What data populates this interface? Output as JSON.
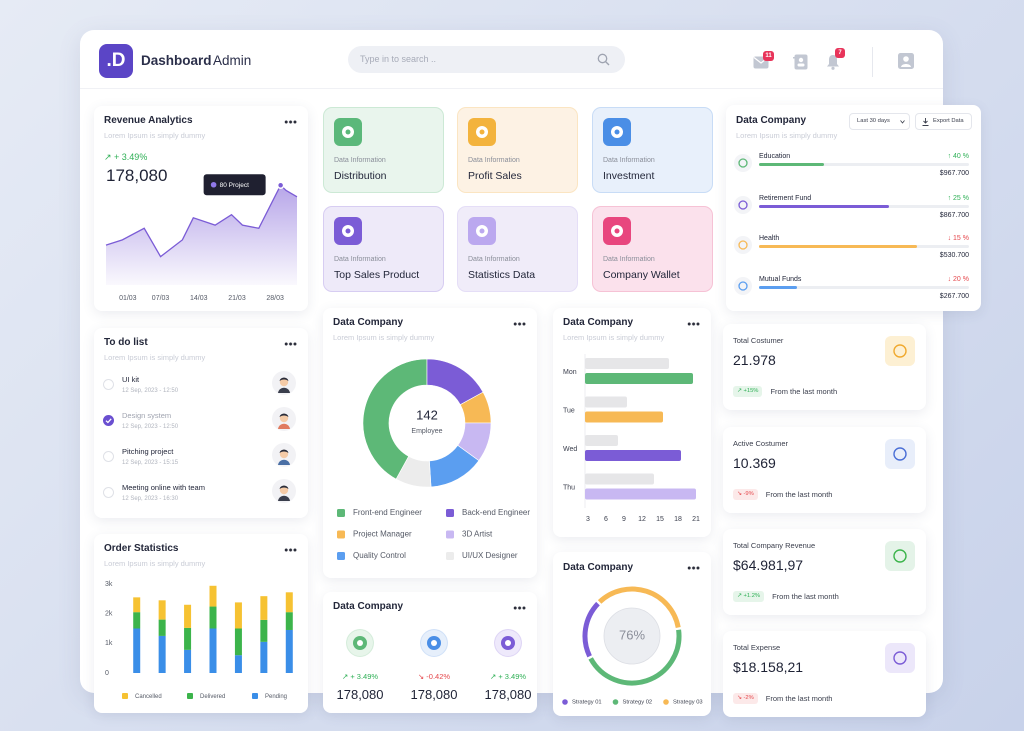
{
  "header": {
    "logo": ".D",
    "title": "Dashboard",
    "title_suffix": "Admin",
    "search_placeholder": "Type in to search ..",
    "mail_count": "11",
    "notification_count": "7"
  },
  "revenue_analytics": {
    "title": "Revenue Analytics",
    "subtitle": "Lorem Ipsum is simply dummy",
    "change": "↗ + 3.49%",
    "total": "178,080",
    "tooltip": "80 Project",
    "chart": {
      "type": "area",
      "color": "#7b5cd6",
      "x": [
        -3,
        0,
        4,
        7,
        11,
        13,
        17,
        20,
        22,
        25,
        29,
        30,
        32
      ],
      "values": [
        38,
        43,
        54,
        27,
        43,
        64,
        57,
        67,
        57,
        54,
        95,
        90,
        84
      ],
      "xlim": [
        -3,
        32
      ],
      "ylim": [
        0,
        100
      ],
      "xticks": [
        {
          "value": 1,
          "label": "01/03"
        },
        {
          "value": 7,
          "label": "07/03"
        },
        {
          "value": 14,
          "label": "14/03"
        },
        {
          "value": 21,
          "label": "21/03"
        },
        {
          "value": 28,
          "label": "28/03"
        }
      ]
    }
  },
  "todo_list": {
    "title": "To do list",
    "subtitle": "Lorem Ipsum is simply dummy",
    "items": [
      {
        "title": "UI kit",
        "date": "12 Sep, 2023 - 12:50",
        "done": false
      },
      {
        "title": "Design system",
        "date": "12 Sep, 2023 - 12:50",
        "done": true
      },
      {
        "title": "Pitching project",
        "date": "12 Sep, 2023 - 15:15",
        "done": false
      },
      {
        "title": "Meeting online with team",
        "date": "12 Sep, 2023 - 16:30",
        "done": false
      }
    ]
  },
  "order_statistics": {
    "title": "Order Statistics",
    "subtitle": "Lorem Ipsum is simply dummy",
    "chart": {
      "type": "stacked-bar",
      "categories": [
        null,
        null,
        null,
        null,
        null,
        null,
        null
      ],
      "series": [
        {
          "name": "Cancelled",
          "color": "#f6c232",
          "values": [
            500,
            650,
            780,
            700,
            880,
            800,
            670
          ]
        },
        {
          "name": "Delivered",
          "color": "#3cb44b",
          "values": [
            550,
            550,
            740,
            740,
            900,
            740,
            600
          ]
        },
        {
          "name": "Pending",
          "color": "#3a8ee8",
          "values": [
            1500,
            1250,
            780,
            1500,
            600,
            1050,
            1450
          ]
        }
      ],
      "ylim": [
        0,
        3000
      ],
      "yticks": [
        0,
        {
          "value": 1000,
          "label": "1k"
        },
        {
          "value": 2000,
          "label": "2k"
        },
        {
          "value": 3000,
          "label": "3k"
        }
      ]
    }
  },
  "info_cards": [
    {
      "label": "Data Information",
      "name": "Distribution"
    },
    {
      "label": "Data Information",
      "name": "Profit Sales"
    },
    {
      "label": "Data Information",
      "name": "Investment"
    },
    {
      "label": "Data Information",
      "name": "Top Sales Product"
    },
    {
      "label": "Data Information",
      "name": "Statistics Data"
    },
    {
      "label": "Data Information",
      "name": "Company Wallet"
    }
  ],
  "employees": {
    "title": "Data Company",
    "subtitle": "Lorem Ipsum is simply dummy",
    "chart": {
      "type": "donut",
      "center_value": "142",
      "center_label": "Employee",
      "categories": [
        "Front-end Engineer",
        "Back-end Engineer",
        "Project Manager",
        "3D Artist",
        "Quality Control",
        "UI/UX Designer"
      ],
      "values": [
        42,
        17,
        8,
        10,
        14,
        9
      ],
      "colors": [
        "#5db877",
        "#7b5cd6",
        "#f7b955",
        "#c8b8f2",
        "#5b9ef0",
        "#ececec"
      ]
    }
  },
  "weekly": {
    "title": "Data Company",
    "subtitle": "Lorem Ipsum is simply dummy",
    "chart": {
      "type": "hbar",
      "categories": [
        "Mon",
        "Tue",
        "Wed",
        "Thu"
      ],
      "series": [
        {
          "color": "#e6e6e8",
          "values": [
            16.5,
            9.5,
            8,
            14
          ]
        },
        {
          "colors": [
            "#5db877",
            "#f7b955",
            "#7b5cd6",
            "#c8b8f2"
          ],
          "values": [
            20.5,
            15.5,
            18.5,
            21
          ]
        }
      ],
      "xlim": [
        2.5,
        21.5
      ],
      "xticks": [
        3,
        6,
        9,
        12,
        15,
        18,
        21
      ]
    }
  },
  "strategy": {
    "title": "Data Company",
    "chart": {
      "type": "ring",
      "center_label": "76%",
      "categories": [
        "Strategy 01",
        "Strategy 02",
        "Strategy 03"
      ],
      "values": [
        20,
        45,
        35
      ],
      "colors": [
        "#7b5cd6",
        "#5db877",
        "#f7b955"
      ]
    }
  },
  "summary": {
    "title": "Data Company",
    "items": [
      {
        "change": "↗ + 3.49%",
        "value": "178,080",
        "change_color": "#2fb056"
      },
      {
        "change": "↘ -0.42%",
        "value": "178,080",
        "change_color": "#e5484d"
      },
      {
        "change": "↗ + 3.49%",
        "value": "178,080",
        "change_color": "#2fb056"
      }
    ]
  },
  "breakdown": {
    "title": "Data Company",
    "subtitle": "Lorem Ipsum is simply dummy",
    "range": "Last 30 days",
    "export": "Export Data",
    "progress_lim": [
      0,
      100
    ],
    "items": [
      {
        "name": "Education",
        "change": "↑ 40 %",
        "amount": "$967.700",
        "progress": 31,
        "color": "#5db877",
        "change_color": "#2fb056"
      },
      {
        "name": "Retirement Fund",
        "change": "↑ 25 %",
        "amount": "$867.700",
        "progress": 62,
        "color": "#7b5cd6",
        "change_color": "#2fb056"
      },
      {
        "name": "Health",
        "change": "↓ 15 %",
        "amount": "$530.700",
        "progress": 75,
        "color": "#f7b955",
        "change_color": "#e5484d"
      },
      {
        "name": "Mutual Funds",
        "change": "↓ 20 %",
        "amount": "$267.700",
        "progress": 18,
        "color": "#5b9ef0",
        "change_color": "#e5484d"
      }
    ]
  },
  "stats": [
    {
      "title": "Total Costumer",
      "value": "21.978",
      "change": "↗ +15%",
      "note": "From the last month",
      "change_color": "#2fb056"
    },
    {
      "title": "Active Costumer",
      "value": "10.369",
      "change": "↘ -9%",
      "note": "From the last month",
      "change_color": "#e5484d"
    },
    {
      "title": "Total Company Revenue",
      "value": "$64.981,97",
      "change": "↗ +1.2%",
      "note": "From the last month",
      "change_color": "#2fb056"
    },
    {
      "title": "Total Expense",
      "value": "$18.158,21",
      "change": "↘ -2%",
      "note": "From the last month",
      "change_color": "#e5484d"
    }
  ]
}
